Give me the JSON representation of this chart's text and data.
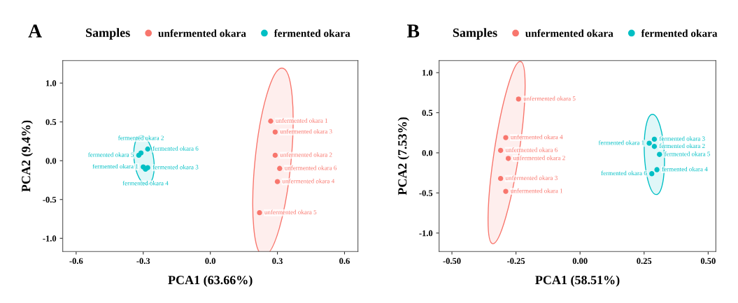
{
  "chart_data": [
    {
      "type": "scatter",
      "title": "A",
      "xlabel": "PCA1 (63.66%)",
      "ylabel": "PCA2 (9.4%)",
      "legend_title": "Samples",
      "legend": "top",
      "marker": "circle",
      "grid": false,
      "xlim": [
        -0.66,
        0.66
      ],
      "ylim": [
        -1.17,
        1.29
      ],
      "xticks": [
        {
          "value": -0.6,
          "label": "-0.6"
        },
        {
          "value": -0.3,
          "label": "-0.3"
        },
        {
          "value": 0,
          "label": "0.0"
        },
        {
          "value": 0.3,
          "label": "0.3"
        },
        {
          "value": 0.6,
          "label": "0.6"
        }
      ],
      "yticks": [
        {
          "value": -1,
          "label": "-1.0"
        },
        {
          "value": -0.5,
          "label": "-0.5"
        },
        {
          "value": 0,
          "label": "0.0"
        },
        {
          "value": 0.5,
          "label": "0.5"
        },
        {
          "value": 1,
          "label": "1.0"
        }
      ],
      "series": [
        {
          "name": "unfermented okara",
          "color": "#f8766d",
          "x": [
            0.27,
            0.29,
            0.29,
            0.3,
            0.22,
            0.31
          ],
          "values": [
            0.51,
            0.07,
            0.37,
            -0.27,
            -0.67,
            -0.1
          ]
        },
        {
          "name": "fermented okara",
          "color": "#00bfc4",
          "x": [
            -0.3,
            -0.31,
            -0.28,
            -0.29,
            -0.32,
            -0.28
          ],
          "values": [
            -0.08,
            0.1,
            -0.09,
            -0.11,
            0.07,
            0.15
          ]
        }
      ],
      "annotations": [
        {
          "text": "unfermented okara 1",
          "x": 0.27,
          "y": 0.51
        },
        {
          "text": "unfermented okara 2",
          "x": 0.29,
          "y": 0.07
        },
        {
          "text": "unfermented okara 3",
          "x": 0.29,
          "y": 0.37
        },
        {
          "text": "unfermented okara 4",
          "x": 0.3,
          "y": -0.27
        },
        {
          "text": "unfermented okara 5",
          "x": 0.22,
          "y": -0.67
        },
        {
          "text": "unfermented okara 6",
          "x": 0.31,
          "y": -0.1
        },
        {
          "text": "fermented okara 1",
          "x": -0.3,
          "y": -0.08
        },
        {
          "text": "fermented okara 2",
          "x": -0.31,
          "y": 0.1
        },
        {
          "text": "fermented okara 3",
          "x": -0.28,
          "y": -0.09
        },
        {
          "text": "fermented okara 4",
          "x": -0.29,
          "y": -0.11
        },
        {
          "text": "fermented okara 5",
          "x": -0.32,
          "y": 0.07
        },
        {
          "text": "fermented okara 6",
          "x": -0.28,
          "y": 0.15
        }
      ]
    },
    {
      "type": "scatter",
      "title": "B",
      "xlabel": "PCA1 (58.51%)",
      "ylabel": "PCA2 (7.53%)",
      "legend_title": "Samples",
      "legend": "top",
      "marker": "circle",
      "grid": false,
      "xlim": [
        -0.55,
        0.53
      ],
      "ylim": [
        -1.23,
        1.15
      ],
      "xticks": [
        {
          "value": -0.5,
          "label": "-0.50"
        },
        {
          "value": -0.25,
          "label": "-0.25"
        },
        {
          "value": 0,
          "label": "0.00"
        },
        {
          "value": 0.25,
          "label": "0.25"
        },
        {
          "value": 0.5,
          "label": "0.50"
        }
      ],
      "yticks": [
        {
          "value": -1,
          "label": "-1.0"
        },
        {
          "value": -0.5,
          "label": "-0.5"
        },
        {
          "value": 0,
          "label": "0.0"
        },
        {
          "value": 0.5,
          "label": "0.5"
        },
        {
          "value": 1,
          "label": "1.0"
        }
      ],
      "series": [
        {
          "name": "unfermented okara",
          "color": "#f8766d",
          "x": [
            -0.29,
            -0.28,
            -0.31,
            -0.29,
            -0.24,
            -0.31
          ],
          "values": [
            -0.48,
            -0.07,
            -0.32,
            0.19,
            0.67,
            0.03
          ]
        },
        {
          "name": "fermented okara",
          "color": "#00bfc4",
          "x": [
            0.27,
            0.29,
            0.29,
            0.3,
            0.31,
            0.28
          ],
          "values": [
            0.12,
            0.08,
            0.17,
            -0.21,
            -0.02,
            -0.26
          ]
        }
      ],
      "annotations": [
        {
          "text": "unfermented okara 1",
          "x": -0.29,
          "y": -0.48
        },
        {
          "text": "unfermented okara 2",
          "x": -0.28,
          "y": -0.07
        },
        {
          "text": "unfermented okara 3",
          "x": -0.31,
          "y": -0.32
        },
        {
          "text": "unfermented okara 4",
          "x": -0.29,
          "y": 0.19
        },
        {
          "text": "unfermented okara 5",
          "x": -0.24,
          "y": 0.67
        },
        {
          "text": "unfermented okara 6",
          "x": -0.31,
          "y": 0.03
        },
        {
          "text": "fermented okara 1",
          "x": 0.27,
          "y": 0.12
        },
        {
          "text": "fermented okara 2",
          "x": 0.29,
          "y": 0.08
        },
        {
          "text": "fermented okara 3",
          "x": 0.29,
          "y": 0.17
        },
        {
          "text": "fermented okara 4",
          "x": 0.3,
          "y": -0.21
        },
        {
          "text": "fermented okara 5",
          "x": 0.31,
          "y": -0.02
        },
        {
          "text": "fermented okara 6",
          "x": 0.28,
          "y": -0.26
        }
      ]
    }
  ]
}
